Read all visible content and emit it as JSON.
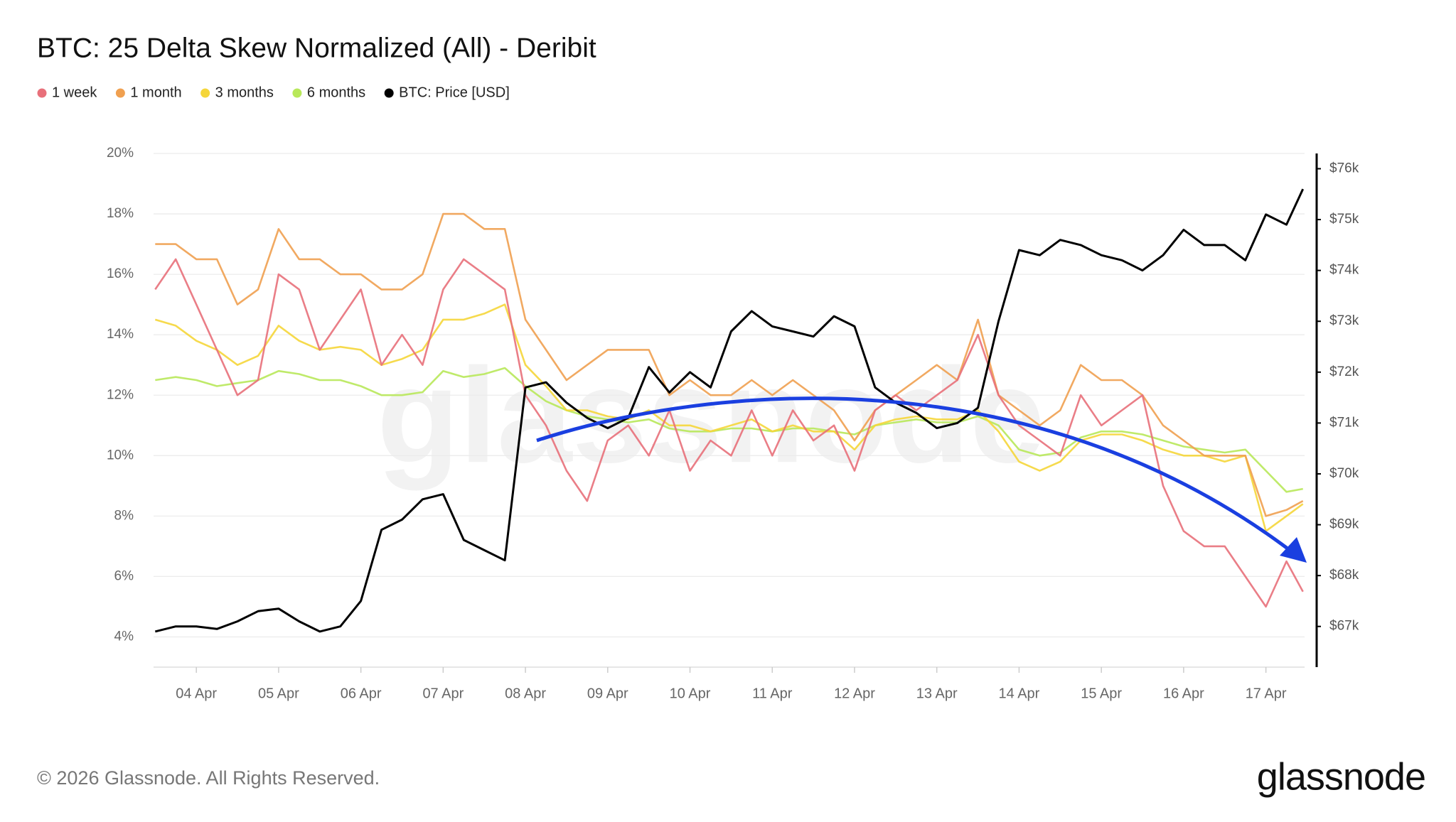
{
  "chart_data": {
    "type": "line",
    "title": "BTC: 25 Delta Skew Normalized (All) - Deribit",
    "watermark": "glassnode",
    "footer": "© 2026 Glassnode. All Rights Reserved.",
    "brand": "glassnode",
    "legend": "top-left",
    "grid": true,
    "x": [
      3.5,
      3.75,
      4,
      4.25,
      4.5,
      4.75,
      5,
      5.25,
      5.5,
      5.75,
      6,
      6.25,
      6.5,
      6.75,
      7,
      7.25,
      7.5,
      7.75,
      8,
      8.25,
      8.5,
      8.75,
      9,
      9.25,
      9.5,
      9.75,
      10,
      10.25,
      10.5,
      10.75,
      11,
      11.25,
      11.5,
      11.75,
      12,
      12.25,
      12.5,
      12.75,
      13,
      13.25,
      13.5,
      13.75,
      14,
      14.25,
      14.5,
      14.75,
      15,
      15.25,
      15.5,
      15.75,
      16,
      16.25,
      16.5,
      16.75,
      17,
      17.25,
      17.45
    ],
    "xlim": [
      3.48,
      17.47
    ],
    "xticks": [
      {
        "value": 4,
        "label": "04 Apr"
      },
      {
        "value": 5,
        "label": "05 Apr"
      },
      {
        "value": 6,
        "label": "06 Apr"
      },
      {
        "value": 7,
        "label": "07 Apr"
      },
      {
        "value": 8,
        "label": "08 Apr"
      },
      {
        "value": 9,
        "label": "09 Apr"
      },
      {
        "value": 10,
        "label": "10 Apr"
      },
      {
        "value": 11,
        "label": "11 Apr"
      },
      {
        "value": 12,
        "label": "12 Apr"
      },
      {
        "value": 13,
        "label": "13 Apr"
      },
      {
        "value": 14,
        "label": "14 Apr"
      },
      {
        "value": 15,
        "label": "15 Apr"
      },
      {
        "value": 16,
        "label": "16 Apr"
      },
      {
        "value": 17,
        "label": "17 Apr"
      }
    ],
    "ylim": [
      3,
      20
    ],
    "yticks": [
      {
        "value": 4,
        "label": "4%"
      },
      {
        "value": 6,
        "label": "6%"
      },
      {
        "value": 8,
        "label": "8%"
      },
      {
        "value": 10,
        "label": "10%"
      },
      {
        "value": 12,
        "label": "12%"
      },
      {
        "value": 14,
        "label": "14%"
      },
      {
        "value": 16,
        "label": "16%"
      },
      {
        "value": 18,
        "label": "18%"
      },
      {
        "value": 20,
        "label": "20%"
      }
    ],
    "y2lim": [
      66200,
      76300
    ],
    "y2ticks": [
      {
        "value": 67000,
        "label": "$67k"
      },
      {
        "value": 68000,
        "label": "$68k"
      },
      {
        "value": 69000,
        "label": "$69k"
      },
      {
        "value": 70000,
        "label": "$70k"
      },
      {
        "value": 71000,
        "label": "$71k"
      },
      {
        "value": 72000,
        "label": "$72k"
      },
      {
        "value": 73000,
        "label": "$73k"
      },
      {
        "value": 74000,
        "label": "$74k"
      },
      {
        "value": 75000,
        "label": "$75k"
      },
      {
        "value": 76000,
        "label": "$76k"
      }
    ],
    "series": [
      {
        "name": "1 week",
        "color": "#e8707a",
        "values": [
          15.5,
          16.5,
          15,
          13.5,
          12,
          12.5,
          16,
          15.5,
          13.5,
          14.5,
          15.5,
          13,
          14,
          13,
          15.5,
          16.5,
          16,
          15.5,
          12,
          11,
          9.5,
          8.5,
          10.5,
          11,
          10,
          11.5,
          9.5,
          10.5,
          10,
          11.5,
          10,
          11.5,
          10.5,
          11,
          9.5,
          11.5,
          12,
          11.5,
          12,
          12.5,
          14,
          12,
          11,
          10.5,
          10,
          12,
          11,
          11.5,
          12,
          9,
          7.5,
          7,
          7,
          6,
          5,
          6.5,
          5.5
        ]
      },
      {
        "name": "1 month",
        "color": "#f0a050",
        "values": [
          17,
          17,
          16.5,
          16.5,
          15,
          15.5,
          17.5,
          16.5,
          16.5,
          16,
          16,
          15.5,
          15.5,
          16,
          18,
          18,
          17.5,
          17.5,
          14.5,
          13.5,
          12.5,
          13,
          13.5,
          13.5,
          13.5,
          12,
          12.5,
          12,
          12,
          12.5,
          12,
          12.5,
          12,
          11.5,
          10.5,
          11.5,
          12,
          12.5,
          13,
          12.5,
          14.5,
          12,
          11.5,
          11,
          11.5,
          13,
          12.5,
          12.5,
          12,
          11,
          10.5,
          10,
          10,
          10,
          8,
          8.2,
          8.5
        ]
      },
      {
        "name": "3 months",
        "color": "#f5d63a",
        "values": [
          14.5,
          14.3,
          13.8,
          13.5,
          13,
          13.3,
          14.3,
          13.8,
          13.5,
          13.6,
          13.5,
          13,
          13.2,
          13.5,
          14.5,
          14.5,
          14.7,
          15,
          13,
          12.3,
          11.5,
          11.5,
          11.3,
          11.2,
          11.5,
          11,
          11,
          10.8,
          11,
          11.2,
          10.8,
          11,
          10.8,
          10.8,
          10.2,
          11,
          11.2,
          11.3,
          11.2,
          11.2,
          11.5,
          10.8,
          9.8,
          9.5,
          9.8,
          10.5,
          10.7,
          10.7,
          10.5,
          10.2,
          10,
          10,
          9.8,
          10,
          7.5,
          8,
          8.4
        ]
      },
      {
        "name": "6 months",
        "color": "#b8e85a",
        "values": [
          12.5,
          12.6,
          12.5,
          12.3,
          12.4,
          12.5,
          12.8,
          12.7,
          12.5,
          12.5,
          12.3,
          12,
          12,
          12.1,
          12.8,
          12.6,
          12.7,
          12.9,
          12.3,
          11.8,
          11.5,
          11.3,
          11.2,
          11.1,
          11.2,
          10.9,
          10.8,
          10.8,
          10.9,
          10.9,
          10.8,
          10.9,
          10.9,
          10.8,
          10.7,
          11,
          11.1,
          11.2,
          11.1,
          11.1,
          11.3,
          11,
          10.2,
          10,
          10.1,
          10.6,
          10.8,
          10.8,
          10.7,
          10.5,
          10.3,
          10.2,
          10.1,
          10.2,
          9.5,
          8.8,
          8.9
        ]
      },
      {
        "name": "BTC: Price [USD]",
        "color": "#000000",
        "axis": "y2",
        "values": [
          66900,
          67000,
          67000,
          66950,
          67100,
          67300,
          67350,
          67100,
          66900,
          67000,
          67500,
          68900,
          69100,
          69500,
          69600,
          68700,
          68500,
          68300,
          71700,
          71800,
          71400,
          71100,
          70900,
          71100,
          72100,
          71600,
          72000,
          71700,
          72800,
          73200,
          72900,
          72800,
          72700,
          73100,
          72900,
          71700,
          71400,
          71200,
          70900,
          71000,
          71300,
          73000,
          74400,
          74300,
          74600,
          74500,
          74300,
          74200,
          74000,
          74300,
          74800,
          74500,
          74500,
          74200,
          75100,
          74900,
          75600
        ]
      }
    ]
  }
}
